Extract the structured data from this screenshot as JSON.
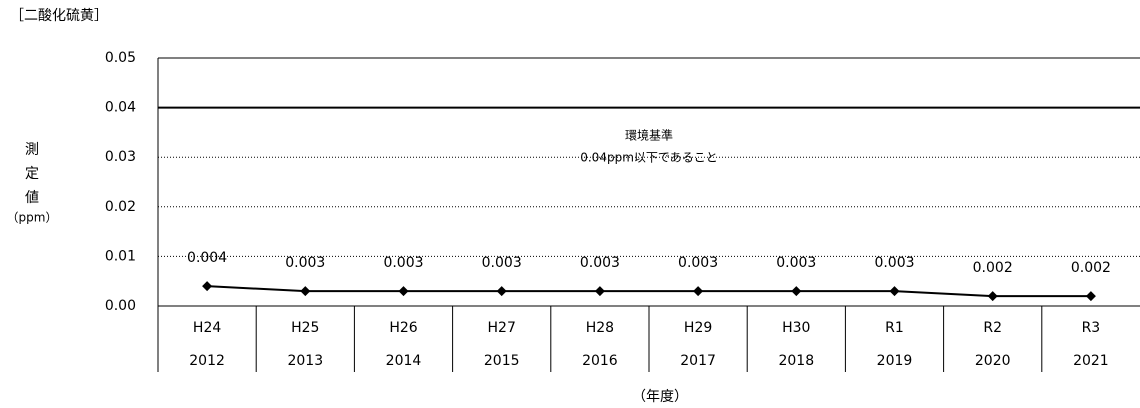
{
  "chart_data": {
    "type": "line",
    "title": "［二酸化硫黄］",
    "ylabel": "測定値",
    "yunit": "（ppm）",
    "xlabel": "（年度）",
    "categories": [
      "H24",
      "H25",
      "H26",
      "H27",
      "H28",
      "H29",
      "H30",
      "R1",
      "R2",
      "R3"
    ],
    "categories2": [
      "2012",
      "2013",
      "2014",
      "2015",
      "2016",
      "2017",
      "2018",
      "2019",
      "2020",
      "2021"
    ],
    "series": [
      {
        "name": "二酸化硫黄",
        "color": "#000000",
        "values": [
          0.004,
          0.003,
          0.003,
          0.003,
          0.003,
          0.003,
          0.003,
          0.003,
          0.002,
          0.002
        ]
      }
    ],
    "reference_line": {
      "value": 0.04,
      "color": "#000000"
    },
    "annotations": [
      "環境基準",
      "0.04ppm以下であること"
    ],
    "ylim": [
      0,
      0.05
    ],
    "yticks": [
      {
        "value": 0,
        "label": "0.00"
      },
      0.01,
      0.02,
      0.03,
      0.04,
      0.05
    ],
    "grid": true
  }
}
